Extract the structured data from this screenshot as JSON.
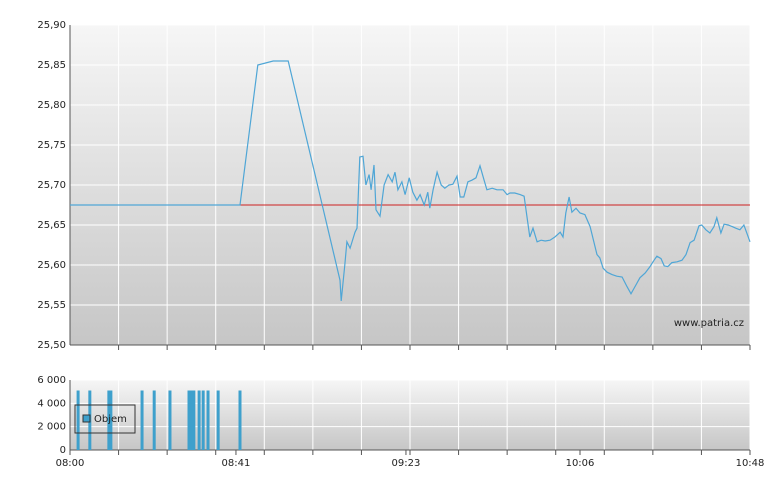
{
  "chart_data": [
    {
      "type": "line",
      "color": "#4fa6d6",
      "grid": true,
      "annotation": "www.patria.cz",
      "reference_line": 25.675,
      "reference_color": "#cc2222",
      "xlim": [
        480,
        648
      ],
      "ylim": [
        25.5,
        25.9
      ],
      "yticks": [
        {
          "value": 25.5,
          "label": "25,50"
        },
        {
          "value": 25.55,
          "label": "25,55"
        },
        {
          "value": 25.6,
          "label": "25,60"
        },
        {
          "value": 25.65,
          "label": "25,65"
        },
        {
          "value": 25.7,
          "label": "25,70"
        },
        {
          "value": 25.75,
          "label": "25,75"
        },
        {
          "value": 25.8,
          "label": "25,80"
        },
        {
          "value": 25.85,
          "label": "25,85"
        },
        {
          "value": 25.9,
          "label": "25,90"
        }
      ],
      "x": [
        480,
        522.0,
        526.4,
        530.2,
        533.9,
        546.7,
        547.0,
        547.9,
        548.4,
        549.2,
        550.4,
        550.9,
        551.6,
        552.4,
        553.1,
        553.9,
        554.4,
        555.1,
        555.6,
        556.6,
        557.6,
        558.6,
        559.6,
        560.3,
        561.0,
        562.0,
        562.8,
        563.8,
        564.7,
        565.7,
        566.5,
        567.5,
        568.4,
        568.9,
        569.7,
        570.7,
        571.7,
        572.6,
        573.6,
        574.6,
        575.6,
        576.4,
        577.3,
        578.3,
        579.3,
        580.3,
        581.3,
        582.3,
        583.0,
        584.3,
        585.5,
        587.0,
        588.0,
        588.7,
        589.9,
        591.2,
        592.2,
        593.6,
        594.4,
        595.4,
        596.4,
        597.4,
        598.6,
        599.8,
        601.1,
        601.8,
        602.5,
        603.3,
        604.0,
        605.0,
        606.0,
        607.2,
        608.5,
        610.2,
        610.9,
        611.7,
        612.7,
        613.9,
        615.1,
        616.4,
        617.6,
        618.6,
        619.8,
        620.8,
        622.1,
        623.3,
        624.3,
        625.0,
        626.0,
        626.8,
        627.7,
        628.7,
        630.0,
        631.2,
        632.2,
        633.2,
        634.2,
        635.4,
        636.1,
        637.1,
        638.1,
        639.1,
        639.8,
        640.8,
        641.6,
        642.6,
        643.6,
        644.5,
        645.5,
        646.5,
        648.0
      ],
      "values": [
        25.675,
        25.675,
        25.85,
        25.855,
        25.855,
        25.581,
        25.555,
        25.6,
        25.629,
        25.621,
        25.641,
        25.646,
        25.735,
        25.736,
        25.7,
        25.713,
        25.694,
        25.725,
        25.669,
        25.661,
        25.7,
        25.713,
        25.704,
        25.716,
        25.694,
        25.704,
        25.688,
        25.709,
        25.691,
        25.681,
        25.688,
        25.675,
        25.691,
        25.671,
        25.694,
        25.716,
        25.7,
        25.696,
        25.7,
        25.701,
        25.711,
        25.685,
        25.685,
        25.704,
        25.706,
        25.709,
        25.724,
        25.706,
        25.694,
        25.696,
        25.694,
        25.694,
        25.688,
        25.69,
        25.69,
        25.688,
        25.686,
        25.635,
        25.646,
        25.629,
        25.631,
        25.63,
        25.631,
        25.635,
        25.641,
        25.635,
        25.665,
        25.685,
        25.666,
        25.671,
        25.665,
        25.663,
        25.648,
        25.613,
        25.609,
        25.596,
        25.591,
        25.588,
        25.586,
        25.585,
        25.573,
        25.564,
        25.575,
        25.584,
        25.59,
        25.598,
        25.606,
        25.611,
        25.608,
        25.599,
        25.598,
        25.603,
        25.604,
        25.606,
        25.613,
        25.628,
        25.631,
        25.649,
        25.65,
        25.644,
        25.64,
        25.648,
        25.659,
        25.64,
        25.651,
        25.65,
        25.648,
        25.646,
        25.644,
        25.65,
        25.629
      ]
    },
    {
      "type": "bar",
      "grid": true,
      "xlim": [
        480,
        648
      ],
      "xticks": [
        {
          "value": 480,
          "label": "08:00"
        },
        {
          "value": 521,
          "label": "08:41"
        },
        {
          "value": 563,
          "label": "09:23"
        },
        {
          "value": 606,
          "label": "10:06"
        },
        {
          "value": 648,
          "label": "10:48"
        }
      ],
      "ylim": [
        0,
        6000
      ],
      "yticks": [
        0,
        {
          "value": 2000,
          "label": "2 000"
        },
        {
          "value": 4000,
          "label": "4 000"
        },
        {
          "value": 6000,
          "label": "6 000"
        }
      ],
      "series": [
        {
          "name": "Objem",
          "color": "#3ea0cc",
          "x": [
            482.0,
            484.9,
            489.6,
            490.1,
            497.8,
            500.8,
            504.7,
            509.4,
            509.9,
            510.6,
            511.9,
            512.9,
            514.1,
            516.6,
            522.0
          ],
          "values": [
            5100,
            5100,
            5100,
            5100,
            5100,
            5100,
            5100,
            5100,
            5100,
            5100,
            5100,
            5100,
            5100,
            5100,
            5100
          ]
        }
      ]
    }
  ]
}
